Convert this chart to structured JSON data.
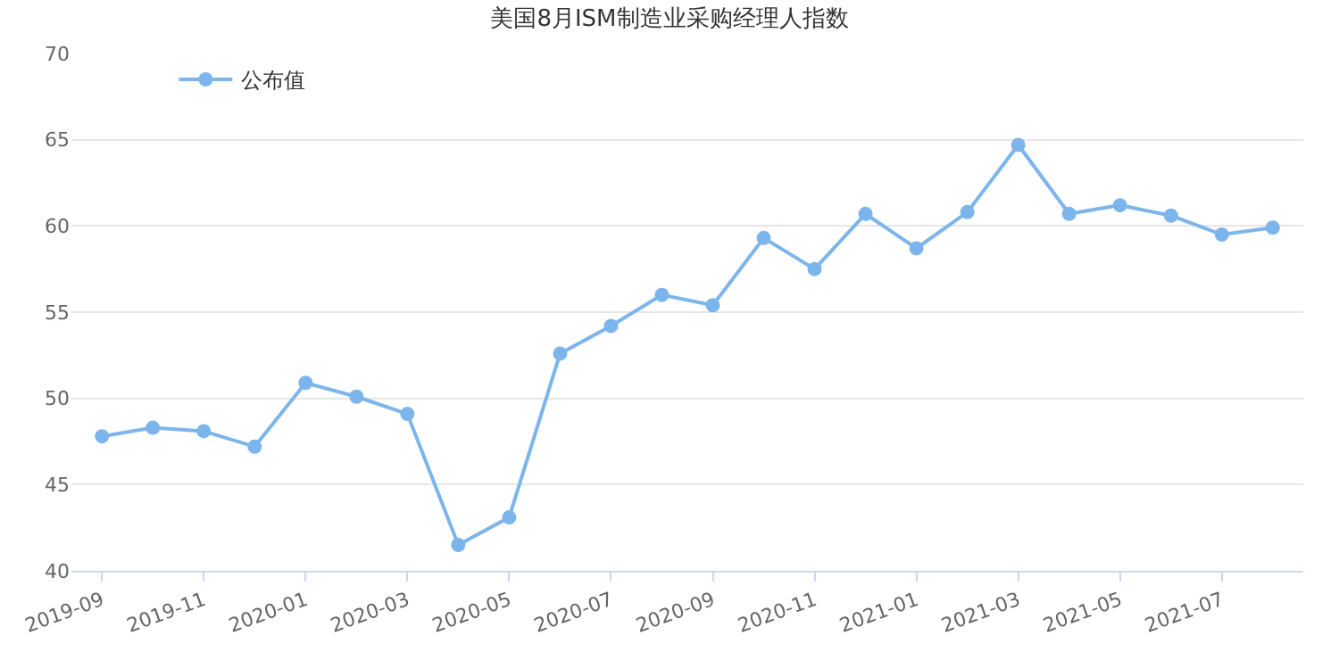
{
  "chart_data": {
    "type": "line",
    "title": "美国8月ISM制造业采购经理人指数",
    "categories": [
      "2019-09",
      null,
      "2019-11",
      null,
      "2020-01",
      null,
      "2020-03",
      null,
      "2020-05",
      null,
      "2020-07",
      null,
      "2020-09",
      null,
      "2020-11",
      null,
      "2021-01",
      null,
      "2021-03",
      null,
      "2021-05",
      null,
      "2021-07",
      null
    ],
    "series": [
      {
        "name": "公布值",
        "color": "#7cb5ec",
        "values": [
          47.8,
          48.3,
          48.1,
          47.2,
          50.9,
          50.1,
          49.1,
          41.5,
          43.1,
          52.6,
          54.2,
          56.0,
          55.4,
          59.3,
          57.5,
          60.7,
          58.7,
          60.8,
          64.7,
          60.7,
          61.2,
          60.6,
          59.5,
          59.9
        ]
      }
    ],
    "ylim": [
      40,
      70
    ],
    "yticks": [
      40,
      45,
      50,
      55,
      60,
      65,
      70
    ],
    "grid": "y",
    "legend": "top left",
    "marker": "circle",
    "line_style": "solid"
  }
}
